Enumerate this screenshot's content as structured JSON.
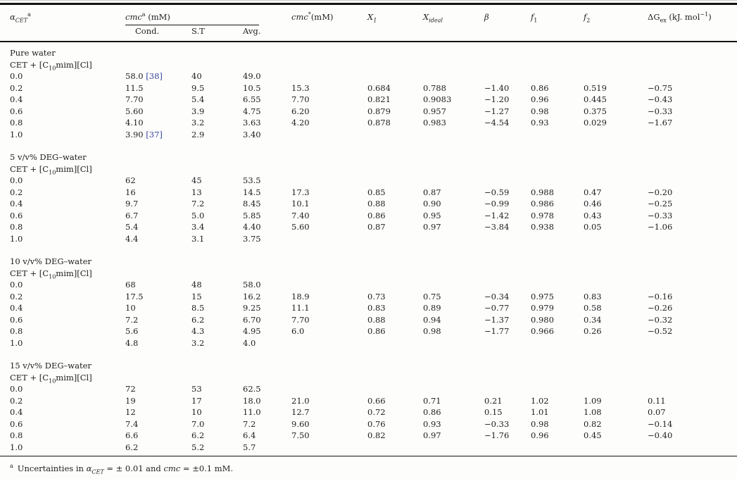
{
  "table": {
    "headers": {
      "alpha": {
        "main": "α",
        "sub": "CET",
        "sup": "a"
      },
      "cmc_group": {
        "main": "cmc",
        "sup": "a",
        "rest": " (mM)"
      },
      "sub_cond": "Cond.",
      "sub_st": "S.T",
      "sub_avg": "Avg.",
      "cmc_star": {
        "main": "cmc",
        "sup": "*",
        "rest": "(mM)"
      },
      "x1": {
        "main": "X",
        "sub": "1"
      },
      "xideal": {
        "main": "X",
        "sub": "ideal"
      },
      "beta": "β",
      "f1": {
        "main": "f",
        "sub": "1"
      },
      "f2": {
        "main": "f",
        "sub": "2"
      },
      "dgex": {
        "main": "ΔG",
        "sub": "ex",
        "rest": " (kJ. mol",
        "exp": "−1",
        "close": ")"
      }
    },
    "columns_order": [
      "alpha",
      "cond",
      "st",
      "avg",
      "cmc_star",
      "x1",
      "xideal",
      "beta",
      "f1",
      "f2",
      "dgex"
    ],
    "citation_color": "#35459c",
    "sections": [
      {
        "title": "Pure water",
        "system": {
          "pre": "CET + [C",
          "sub": "10",
          "post": "mim][Cl]"
        },
        "rows": [
          {
            "alpha": "0.0",
            "cond": "58.0",
            "cond_ref": "[38]",
            "st": "40",
            "avg": "49.0",
            "cmc_star": "",
            "x1": "",
            "xideal": "",
            "beta": "",
            "f1": "",
            "f2": "",
            "dgex": ""
          },
          {
            "alpha": "0.2",
            "cond": "11.5",
            "st": "9.5",
            "avg": "10.5",
            "cmc_star": "15.3",
            "x1": "0.684",
            "xideal": "0.788",
            "beta": "−1.40",
            "f1": "0.86",
            "f2": "0.519",
            "dgex": "−0.75"
          },
          {
            "alpha": "0.4",
            "cond": "7.70",
            "st": "5.4",
            "avg": "6.55",
            "cmc_star": "7.70",
            "x1": "0.821",
            "xideal": "0.9083",
            "beta": "−1.20",
            "f1": "0.96",
            "f2": "0.445",
            "dgex": "−0.43"
          },
          {
            "alpha": "0.6",
            "cond": "5.60",
            "st": "3.9",
            "avg": "4.75",
            "cmc_star": "6.20",
            "x1": "0.879",
            "xideal": "0.957",
            "beta": "−1.27",
            "f1": "0.98",
            "f2": "0.375",
            "dgex": "−0.33"
          },
          {
            "alpha": "0.8",
            "cond": "4.10",
            "st": "3.2",
            "avg": "3.63",
            "cmc_star": "4.20",
            "x1": "0.878",
            "xideal": "0.983",
            "beta": "−4.54",
            "f1": "0.93",
            "f2": "0.029",
            "dgex": "−1.67"
          },
          {
            "alpha": "1.0",
            "cond": "3.90",
            "cond_ref": "[37]",
            "st": "2.9",
            "avg": "3.40",
            "cmc_star": "",
            "x1": "",
            "xideal": "",
            "beta": "",
            "f1": "",
            "f2": "",
            "dgex": ""
          }
        ]
      },
      {
        "title": "5 v/v% DEG–water",
        "system": {
          "pre": "CET + [C",
          "sub": "10",
          "post": "mim][Cl]"
        },
        "rows": [
          {
            "alpha": "0.0",
            "cond": "62",
            "st": "45",
            "avg": "53.5",
            "cmc_star": "",
            "x1": "",
            "xideal": "",
            "beta": "",
            "f1": "",
            "f2": "",
            "dgex": ""
          },
          {
            "alpha": "0.2",
            "cond": "16",
            "st": "13",
            "avg": "14.5",
            "cmc_star": "17.3",
            "x1": "0.85",
            "xideal": "0.87",
            "beta": "−0.59",
            "f1": "0.988",
            "f2": "0.47",
            "dgex": "−0.20"
          },
          {
            "alpha": "0.4",
            "cond": "9.7",
            "st": "7.2",
            "avg": "8.45",
            "cmc_star": "10.1",
            "x1": "0.88",
            "xideal": "0.90",
            "beta": "−0.99",
            "f1": "0.986",
            "f2": "0.46",
            "dgex": "−0.25"
          },
          {
            "alpha": "0.6",
            "cond": "6.7",
            "st": "5.0",
            "avg": "5.85",
            "cmc_star": "7.40",
            "x1": "0.86",
            "xideal": "0.95",
            "beta": "−1.42",
            "f1": "0.978",
            "f2": "0.43",
            "dgex": "−0.33"
          },
          {
            "alpha": "0.8",
            "cond": "5.4",
            "st": "3.4",
            "avg": "4.40",
            "cmc_star": "5.60",
            "x1": "0.87",
            "xideal": "0.97",
            "beta": "−3.84",
            "f1": "0.938",
            "f2": "0.05",
            "dgex": "−1.06"
          },
          {
            "alpha": "1.0",
            "cond": "4.4",
            "st": "3.1",
            "avg": "3.75",
            "cmc_star": "",
            "x1": "",
            "xideal": "",
            "beta": "",
            "f1": "",
            "f2": "",
            "dgex": ""
          }
        ]
      },
      {
        "title": "10 v/v% DEG–water",
        "system": {
          "pre": "CET + [C",
          "sub": "10",
          "post": "mim][Cl]"
        },
        "rows": [
          {
            "alpha": "0.0",
            "cond": "68",
            "st": "48",
            "avg": "58.0",
            "cmc_star": "",
            "x1": "",
            "xideal": "",
            "beta": "",
            "f1": "",
            "f2": "",
            "dgex": ""
          },
          {
            "alpha": "0.2",
            "cond": "17.5",
            "st": "15",
            "avg": "16.2",
            "cmc_star": "18.9",
            "x1": "0.73",
            "xideal": "0.75",
            "beta": "−0.34",
            "f1": "0.975",
            "f2": "0.83",
            "dgex": "−0.16"
          },
          {
            "alpha": "0.4",
            "cond": "10",
            "st": "8.5",
            "avg": "9.25",
            "cmc_star": "11.1",
            "x1": "0.83",
            "xideal": "0.89",
            "beta": "−0.77",
            "f1": "0.979",
            "f2": "0.58",
            "dgex": "−0.26"
          },
          {
            "alpha": "0.6",
            "cond": "7.2",
            "st": "6.2",
            "avg": "6.70",
            "cmc_star": "7.70",
            "x1": "0.88",
            "xideal": "0.94",
            "beta": "−1.37",
            "f1": "0.980",
            "f2": "0.34",
            "dgex": "−0.32"
          },
          {
            "alpha": "0.8",
            "cond": "5.6",
            "st": "4.3",
            "avg": "4.95",
            "cmc_star": "6.0",
            "x1": "0.86",
            "xideal": "0.98",
            "beta": "−1.77",
            "f1": "0.966",
            "f2": "0.26",
            "dgex": "−0.52"
          },
          {
            "alpha": "1.0",
            "cond": "4.8",
            "st": "3.2",
            "avg": "4.0",
            "cmc_star": "",
            "x1": "",
            "xideal": "",
            "beta": "",
            "f1": "",
            "f2": "",
            "dgex": ""
          }
        ]
      },
      {
        "title": "15 v/v% DEG–water",
        "system": {
          "pre": "CET + [C",
          "sub": "10",
          "post": "mim][Cl]"
        },
        "rows": [
          {
            "alpha": "0.0",
            "cond": "72",
            "st": "53",
            "avg": "62.5",
            "cmc_star": "",
            "x1": "",
            "xideal": "",
            "beta": "",
            "f1": "",
            "f2": "",
            "dgex": ""
          },
          {
            "alpha": "0.2",
            "cond": "19",
            "st": "17",
            "avg": "18.0",
            "cmc_star": "21.0",
            "x1": "0.66",
            "xideal": "0.71",
            "beta": "0.21",
            "f1": "1.02",
            "f2": "1.09",
            "dgex": "0.11"
          },
          {
            "alpha": "0.4",
            "cond": "12",
            "st": "10",
            "avg": "11.0",
            "cmc_star": "12.7",
            "x1": "0.72",
            "xideal": "0.86",
            "beta": "0.15",
            "f1": "1.01",
            "f2": "1.08",
            "dgex": "0.07"
          },
          {
            "alpha": "0.6",
            "cond": "7.4",
            "st": "7.0",
            "avg": "7.2",
            "cmc_star": "9.60",
            "x1": "0.76",
            "xideal": "0.93",
            "beta": "−0.33",
            "f1": "0.98",
            "f2": "0.82",
            "dgex": "−0.14"
          },
          {
            "alpha": "0.8",
            "cond": "6.6",
            "st": "6.2",
            "avg": "6.4",
            "cmc_star": "7.50",
            "x1": "0.82",
            "xideal": "0.97",
            "beta": "−1.76",
            "f1": "0.96",
            "f2": "0.45",
            "dgex": "−0.40"
          },
          {
            "alpha": "1.0",
            "cond": "6.2",
            "st": "5.2",
            "avg": "5.7",
            "cmc_star": "",
            "x1": "",
            "xideal": "",
            "beta": "",
            "f1": "",
            "f2": "",
            "dgex": ""
          }
        ]
      }
    ],
    "footnote": {
      "marker": "a",
      "parts": [
        {
          "t": "Uncertainties in ",
          "style": "normal"
        },
        {
          "t": "α",
          "style": "italic"
        },
        {
          "t": "CET",
          "style": "sub-italic"
        },
        {
          "t": " = ± 0.01 and ",
          "style": "normal"
        },
        {
          "t": "cmc",
          "style": "italic"
        },
        {
          "t": " = ±0.1 mM.",
          "style": "normal"
        }
      ]
    }
  }
}
